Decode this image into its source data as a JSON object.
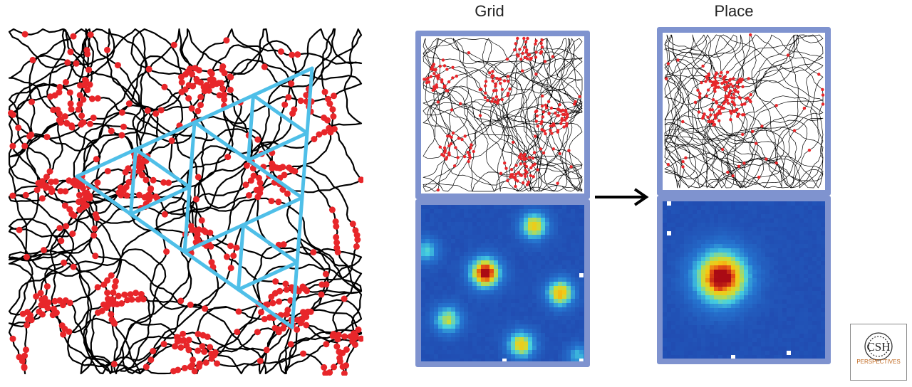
{
  "labels": {
    "grid": "Grid",
    "place": "Place"
  },
  "logo": {
    "text": "CSH",
    "subtext": "PERSPECTIVES"
  },
  "colors": {
    "trajectory": "#000000",
    "spike": "#e8262a",
    "grid_lines": "#4fbfe8",
    "frame": "#7f93cf",
    "heatmap_bg": "#1f3fa8",
    "logo_accent": "#c0661c"
  },
  "icons": {
    "arrow": "arrow-right-icon",
    "logo": "csh-perspectives-logo"
  }
}
